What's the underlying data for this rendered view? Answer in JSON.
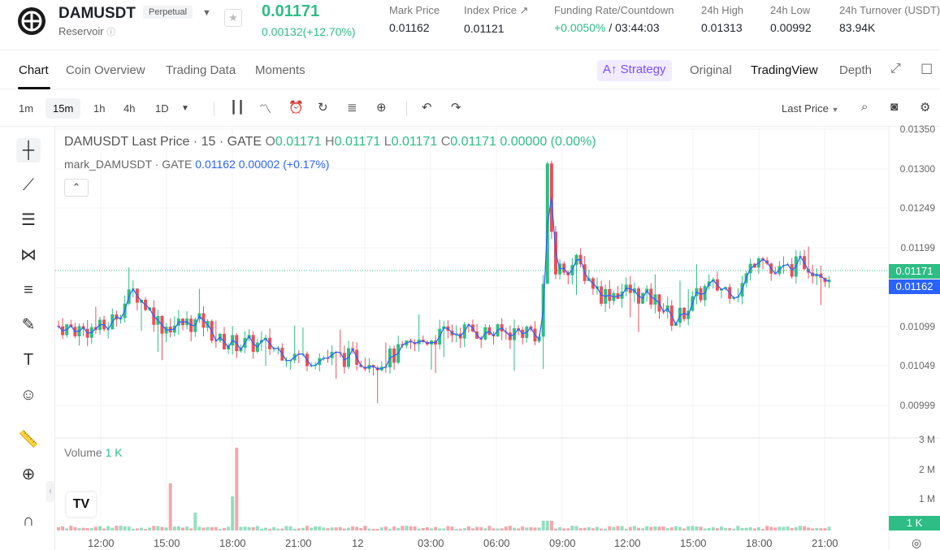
{
  "header": {
    "symbol": "DAMUSDT",
    "contract_type": "Perpetual",
    "exchange_mode": "Reservoir",
    "last_price": "0.01171",
    "change": "0.00132(+12.70%)",
    "stats": [
      {
        "label": "Mark Price",
        "value": "0.01162"
      },
      {
        "label": "Index Price ↗",
        "value": "0.01121"
      },
      {
        "label": "Funding Rate/Countdown",
        "value": "+0.0050%",
        "value2": " / 03:44:03"
      },
      {
        "label": "24h High",
        "value": "0.01313"
      },
      {
        "label": "24h Low",
        "value": "0.00992"
      },
      {
        "label": "24h Turnover (USDT)",
        "value": "83.94K"
      }
    ]
  },
  "tabs": {
    "left": [
      "Chart",
      "Coin Overview",
      "Trading Data",
      "Moments"
    ],
    "strategy": "A↑ Strategy",
    "right": [
      "Original",
      "TradingView",
      "Depth"
    ]
  },
  "toolbar": {
    "timeframes": [
      "1m",
      "15m",
      "1h",
      "4h",
      "1D"
    ],
    "active_timeframe": "15m",
    "price_type": "Last Price"
  },
  "legend": {
    "title": "DAMUSDT Last Price · 15 · GATE",
    "o": "0.01171",
    "h": "0.01171",
    "l": "0.01171",
    "c": "0.01171",
    "change": "0.00000 (0.00%)",
    "mark_label": "mark_DAMUSDT · GATE",
    "mark_value": "0.01162",
    "mark_change": "0.00002 (+0.17%)"
  },
  "volume": {
    "label": "Volume",
    "value": "1 K"
  },
  "chart_data": {
    "type": "candlestick",
    "y_ticks": [
      "0.01350",
      "0.01300",
      "0.01249",
      "0.01199",
      "0.01148",
      "0.01099",
      "0.01049",
      "0.00999"
    ],
    "volume_ticks": [
      "3 M",
      "2 M",
      "1 M"
    ],
    "x_ticks": [
      "12:00",
      "15:00",
      "18:00",
      "21:00",
      "12",
      "03:00",
      "06:00",
      "09:00",
      "12:00",
      "15:00",
      "18:00",
      "21:00"
    ],
    "last_price_tag": "0.01171",
    "mark_price_tag": "0.01162",
    "volume_tag": "1 K",
    "ylim": [
      0.00975,
      0.01355
    ],
    "colors": {
      "up": "#2ebd85",
      "down": "#e8505b",
      "mark_line": "#2962ff"
    }
  }
}
